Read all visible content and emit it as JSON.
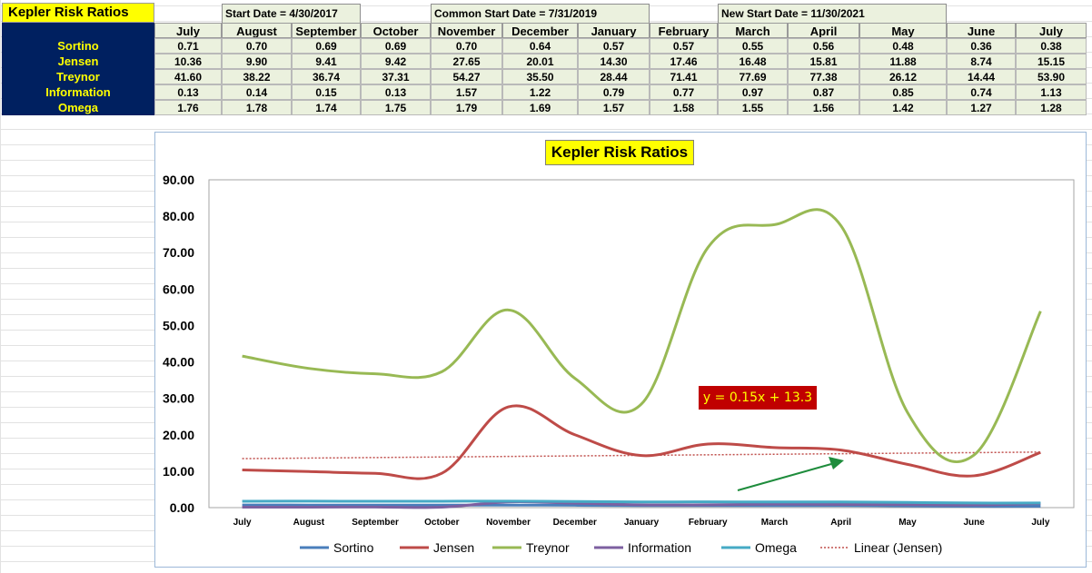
{
  "sheet": {
    "title": "Kepler Risk Ratios",
    "date_labels": [
      "Start Date = 4/30/2017",
      "Common Start Date = 7/31/2019",
      "New Start Date = 11/30/2021"
    ],
    "months": [
      "July",
      "August",
      "September",
      "October",
      "November",
      "December",
      "January",
      "February",
      "March",
      "April",
      "May",
      "June",
      "July"
    ],
    "rows": [
      {
        "label": "Sortino",
        "values": [
          "0.71",
          "0.70",
          "0.69",
          "0.69",
          "0.70",
          "0.64",
          "0.57",
          "0.57",
          "0.55",
          "0.56",
          "0.48",
          "0.36",
          "0.38"
        ]
      },
      {
        "label": "Jensen",
        "values": [
          "10.36",
          "9.90",
          "9.41",
          "9.42",
          "27.65",
          "20.01",
          "14.30",
          "17.46",
          "16.48",
          "15.81",
          "11.88",
          "8.74",
          "15.15"
        ]
      },
      {
        "label": "Treynor",
        "values": [
          "41.60",
          "38.22",
          "36.74",
          "37.31",
          "54.27",
          "35.50",
          "28.44",
          "71.41",
          "77.69",
          "77.38",
          "26.12",
          "14.44",
          "53.90"
        ]
      },
      {
        "label": "Information",
        "values": [
          "0.13",
          "0.14",
          "0.15",
          "0.13",
          "1.57",
          "1.22",
          "0.79",
          "0.77",
          "0.97",
          "0.87",
          "0.85",
          "0.74",
          "1.13"
        ]
      },
      {
        "label": "Omega",
        "values": [
          "1.76",
          "1.78",
          "1.74",
          "1.75",
          "1.79",
          "1.69",
          "1.57",
          "1.58",
          "1.55",
          "1.56",
          "1.42",
          "1.27",
          "1.28"
        ]
      }
    ]
  },
  "colors": {
    "Sortino": "#4a7ebb",
    "Jensen": "#be4b48",
    "Treynor": "#98b954",
    "Information": "#7d60a0",
    "Omega": "#46aac5",
    "Linear (Jensen)": "#c0504d",
    "arrow": "#1e8c3c"
  },
  "chart_data": {
    "type": "line",
    "title": "Kepler Risk Ratios",
    "categories": [
      "July",
      "August",
      "September",
      "October",
      "November",
      "December",
      "January",
      "February",
      "March",
      "April",
      "May",
      "June",
      "July"
    ],
    "ylim": [
      0,
      90
    ],
    "yticks": [
      "0.00",
      "10.00",
      "20.00",
      "30.00",
      "40.00",
      "50.00",
      "60.00",
      "70.00",
      "80.00",
      "90.00"
    ],
    "grid": false,
    "legend_position": "bottom",
    "series": [
      {
        "name": "Sortino",
        "values": [
          0.71,
          0.7,
          0.69,
          0.69,
          0.7,
          0.64,
          0.57,
          0.57,
          0.55,
          0.56,
          0.48,
          0.36,
          0.38
        ]
      },
      {
        "name": "Jensen",
        "values": [
          10.36,
          9.9,
          9.41,
          9.42,
          27.65,
          20.01,
          14.3,
          17.46,
          16.48,
          15.81,
          11.88,
          8.74,
          15.15
        ]
      },
      {
        "name": "Treynor",
        "values": [
          41.6,
          38.22,
          36.74,
          37.31,
          54.27,
          35.5,
          28.44,
          71.41,
          77.69,
          77.38,
          26.12,
          14.44,
          53.9
        ]
      },
      {
        "name": "Information",
        "values": [
          0.13,
          0.14,
          0.15,
          0.13,
          1.57,
          1.22,
          0.79,
          0.77,
          0.97,
          0.87,
          0.85,
          0.74,
          1.13
        ]
      },
      {
        "name": "Omega",
        "values": [
          1.76,
          1.78,
          1.74,
          1.75,
          1.79,
          1.69,
          1.57,
          1.58,
          1.55,
          1.56,
          1.42,
          1.27,
          1.28
        ]
      }
    ],
    "trendline": {
      "name": "Linear (Jensen)",
      "slope": 0.15,
      "intercept": 13.3,
      "label": "y = 0.15x + 13.3"
    }
  }
}
